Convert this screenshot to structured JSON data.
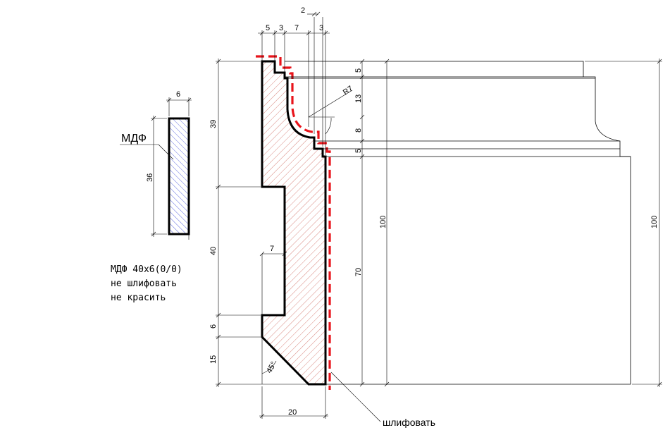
{
  "colors": {
    "sanding_line": "#e8141b",
    "profile_hatch": "#c0392b",
    "mdf_hatch": "#1f2fd6",
    "stroke": "#000000"
  },
  "mdf_panel": {
    "label": "МДФ",
    "dim_width": "6",
    "dim_height": "36",
    "note_lines": [
      "МДФ 40х6(0/0)",
      "не шлифовать",
      "не красить"
    ]
  },
  "profile": {
    "top_dims": [
      "5",
      "3",
      "7",
      "3"
    ],
    "top_dim_extra": "2",
    "radius_label": "R7",
    "left_dims": [
      "39",
      "40",
      "6",
      "15"
    ],
    "slot_dim": "7",
    "angle_label": "45°",
    "bottom_dim": "20",
    "sanding_label": "шлифовать"
  },
  "side_view": {
    "right_dims": [
      "5",
      "13",
      "8",
      "5",
      "70"
    ],
    "inner_total": "100",
    "outer_total": "100"
  }
}
